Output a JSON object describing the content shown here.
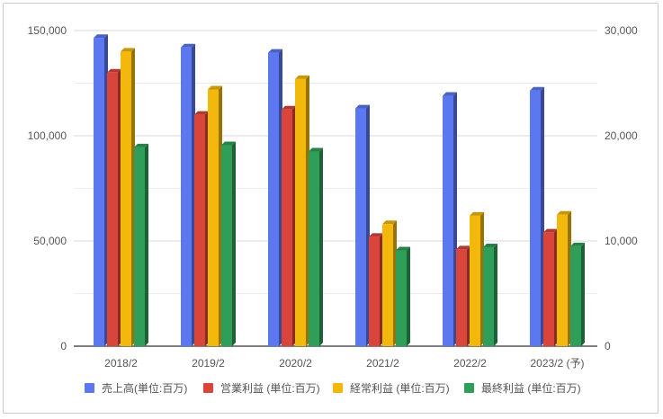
{
  "chart_data": {
    "type": "bar",
    "categories": [
      "2018/2",
      "2019/2",
      "2020/2",
      "2021/2",
      "2022/2",
      "2023/2 (予)"
    ],
    "series": [
      {
        "name": "売上高(単位:百万)",
        "axis": "left",
        "color": "#5b78f0",
        "values": [
          146500,
          142000,
          139500,
          113000,
          119000,
          121500
        ]
      },
      {
        "name": "営業利益 (単位:百万)",
        "axis": "right",
        "color": "#d9453b",
        "values": [
          26000,
          22000,
          22500,
          10400,
          9200,
          10800
        ]
      },
      {
        "name": "経常利益 (単位:百万)",
        "axis": "right",
        "color": "#f2b80c",
        "values": [
          28000,
          24400,
          25400,
          11600,
          12400,
          12500
        ]
      },
      {
        "name": "最終利益 (単位:百万)",
        "axis": "right",
        "color": "#2e9e58",
        "values": [
          18900,
          19100,
          18500,
          9100,
          9400,
          9500
        ]
      }
    ],
    "left_axis": {
      "ylim": [
        0,
        150000
      ],
      "ticks": [
        "0",
        "50,000",
        "100,000",
        "150,000"
      ],
      "tick_values": [
        0,
        50000,
        100000,
        150000
      ]
    },
    "right_axis": {
      "ylim": [
        0,
        30000
      ],
      "ticks": [
        "0",
        "10,000",
        "20,000",
        "30,000"
      ],
      "tick_values": [
        0,
        10000,
        20000,
        30000
      ]
    },
    "grid": true,
    "legend_position": "bottom",
    "title": "",
    "xlabel": "",
    "ylabel": ""
  }
}
